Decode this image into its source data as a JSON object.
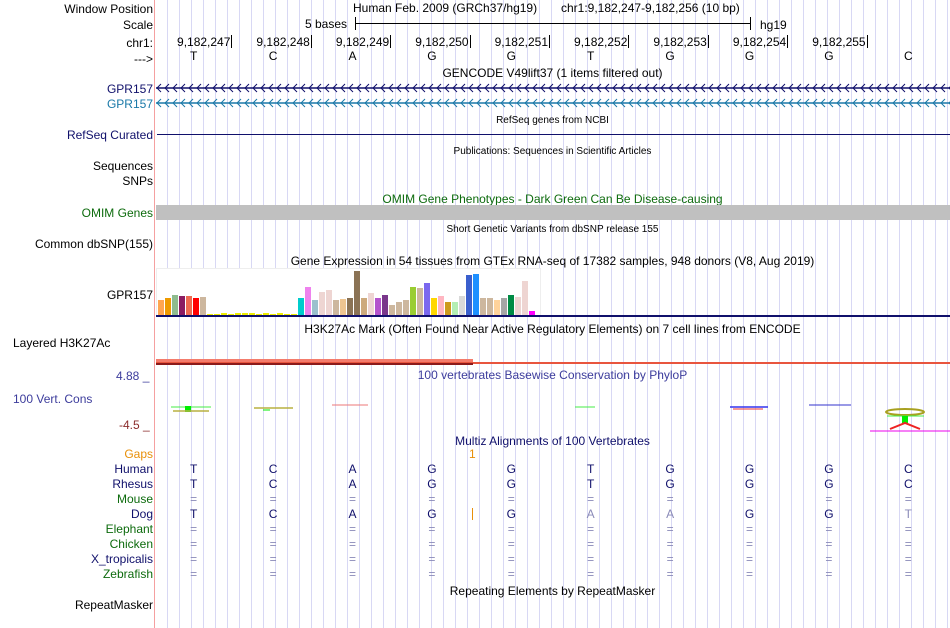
{
  "header": {
    "window_position_label": "Window Position",
    "scale_label": "Scale",
    "chrom_label": "chr1:",
    "strand_label": "--->",
    "assembly_title": "Human Feb. 2009 (GRCh37/hg19)",
    "position_text": "chr1:9,182,247-9,182,256 (10 bp)",
    "scale_text": "5 bases",
    "scale_db": "hg19"
  },
  "ruler": {
    "ticks": [
      "9,182,247",
      "9,182,248",
      "9,182,249",
      "9,182,250",
      "9,182,251",
      "9,182,252",
      "9,182,253",
      "9,182,254",
      "9,182,255"
    ],
    "bases": [
      "T",
      "C",
      "A",
      "G",
      "G",
      "T",
      "G",
      "G",
      "G",
      "C"
    ]
  },
  "tracks": {
    "gencode": {
      "title": "GENCODE V49lift37 (1 items filtered out)",
      "items": [
        "GPR157",
        "GPR157"
      ]
    },
    "refseq": {
      "label": "RefSeq Curated",
      "title": "RefSeq genes from NCBI"
    },
    "publications": {
      "label1": "Sequences",
      "label2": "SNPs",
      "title": "Publications: Sequences in Scientific Articles"
    },
    "omim": {
      "label": "OMIM Genes",
      "title": "OMIM Gene Phenotypes - Dark Green Can Be Disease-causing",
      "color": "#c0c0c0"
    },
    "dbsnp": {
      "label": "Common dbSNP(155)",
      "title": "Short Genetic Variants from dbSNP release 155"
    },
    "gtex": {
      "label": "GPR157",
      "title": "Gene Expression in 54 tissues from GTEx RNA-seq of 17382 samples, 948 donors (V8, Aug 2019)"
    },
    "h3k27ac": {
      "label": "Layered H3K27Ac",
      "title": "H3K27Ac Mark (Often Found Near Active Regulatory Elements) on 7 cell lines from ENCODE"
    },
    "phylop": {
      "label": "100 Vert. Cons",
      "title": "100 vertebrates Basewise Conservation by PhyloP",
      "max": "4.88 _",
      "min": "-4.5 _"
    },
    "multiz": {
      "title": "Multiz Alignments of 100 Vertebrates",
      "gaps_label": "Gaps",
      "gap_count": "1",
      "species": [
        {
          "name": "Human",
          "bases": [
            "T",
            "C",
            "A",
            "G",
            "G",
            "T",
            "G",
            "G",
            "G",
            "C"
          ]
        },
        {
          "name": "Rhesus",
          "bases": [
            "T",
            "C",
            "A",
            "G",
            "G",
            "T",
            "G",
            "G",
            "G",
            "C"
          ]
        },
        {
          "name": "Mouse",
          "bases": [
            "=",
            "=",
            "=",
            "=",
            "=",
            "=",
            "=",
            "=",
            "=",
            "="
          ]
        },
        {
          "name": "Dog",
          "bases": [
            "T",
            "C",
            "A",
            "G",
            "G",
            "A",
            "A",
            "G",
            "G",
            "T"
          ]
        },
        {
          "name": "Elephant",
          "bases": [
            "=",
            "=",
            "=",
            "=",
            "=",
            "=",
            "=",
            "=",
            "=",
            "="
          ]
        },
        {
          "name": "Chicken",
          "bases": [
            "=",
            "=",
            "=",
            "=",
            "=",
            "=",
            "=",
            "=",
            "=",
            "="
          ]
        },
        {
          "name": "X_tropicalis",
          "bases": [
            "=",
            "=",
            "=",
            "=",
            "=",
            "=",
            "=",
            "=",
            "=",
            "="
          ]
        },
        {
          "name": "Zebrafish",
          "bases": [
            "=",
            "=",
            "=",
            "=",
            "=",
            "=",
            "=",
            "=",
            "=",
            "="
          ]
        }
      ]
    },
    "repeatmasker": {
      "label": "RepeatMasker",
      "title": "Repeating Elements by RepeatMasker"
    }
  },
  "chart_data": {
    "type": "bar",
    "title": "Gene Expression in 54 tissues from GTEx RNA-seq of 17382 samples, 948 donors (V8, Aug 2019)",
    "xlabel": "",
    "ylabel": "",
    "ylim": [
      0,
      1
    ],
    "values": [
      0.35,
      0.4,
      0.45,
      0.43,
      0.43,
      0.4,
      0.42,
      0.05,
      0.05,
      0.07,
      0.04,
      0.07,
      0.07,
      0.07,
      0.05,
      0.07,
      0.05,
      0.07,
      0.05,
      0.05,
      0.4,
      0.62,
      0.35,
      0.52,
      0.56,
      0.35,
      0.37,
      0.4,
      0.98,
      0.4,
      0.5,
      0.4,
      0.45,
      0.24,
      0.3,
      0.35,
      0.62,
      0.6,
      0.72,
      0.4,
      0.43,
      0.3,
      0.3,
      0.43,
      0.9,
      0.92,
      0.4,
      0.4,
      0.35,
      0.4,
      0.45,
      0.42,
      0.75,
      0.1
    ],
    "colors": [
      "#ffa54f",
      "#ee9a00",
      "#8fbc8f",
      "#8b1c62",
      "#ee6a50",
      "#ff0000",
      "#cdb79e",
      "#eeee00",
      "#eeee00",
      "#eeee00",
      "#eeee00",
      "#eeee00",
      "#eeee00",
      "#eeee00",
      "#eeee00",
      "#eeee00",
      "#eeee00",
      "#eeee00",
      "#eeee00",
      "#eeee00",
      "#00cdcd",
      "#ee82ee",
      "#9ac0cd",
      "#eed5d2",
      "#eed5d2",
      "#cdb79e",
      "#eec591",
      "#8b7355",
      "#8b7355",
      "#cdaa7d",
      "#eed5d2",
      "#b452cd",
      "#7a378b",
      "#cdb79e",
      "#cdb79e",
      "#cdb79e",
      "#9acd32",
      "#cdb79e",
      "#7b68ee",
      "#ffd700",
      "#ffb6c1",
      "#cd9b1d",
      "#b4eeb4",
      "#d9d9d9",
      "#3a5fcd",
      "#1e90ff",
      "#cdb79e",
      "#cdb79e",
      "#ffd39b",
      "#a6a6a6",
      "#008b45",
      "#eed5d2",
      "#eed5d2",
      "#ff00ff"
    ]
  }
}
